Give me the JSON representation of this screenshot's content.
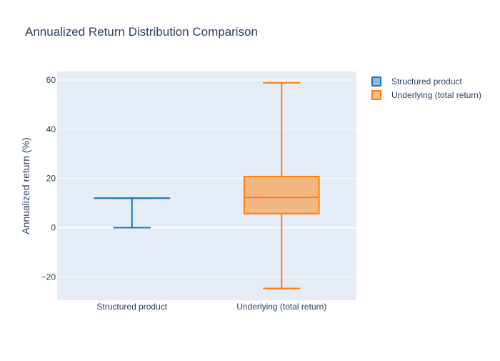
{
  "chart_data": {
    "type": "box",
    "title": "Annualized Return Distribution Comparison",
    "xlabel": "",
    "ylabel": "Annualized return (%)",
    "ylim": [
      -29.5,
      63.5
    ],
    "yticks": [
      -20,
      0,
      20,
      40,
      60
    ],
    "ytick_labels": [
      "−20",
      "0",
      "20",
      "40",
      "60"
    ],
    "categories": [
      "Structured product",
      "Underlying (total return)"
    ],
    "grid": true,
    "legend_position": "top-right",
    "series": [
      {
        "name": "Structured product",
        "color": "#1f77b4",
        "fill": "rgba(31,119,180,0.5)",
        "min": 0,
        "q1": 12,
        "median": 12,
        "q3": 12,
        "max": 12
      },
      {
        "name": "Underlying (total return)",
        "color": "#ff7f0e",
        "fill": "rgba(255,127,14,0.5)",
        "min": -24.7,
        "q1": 5.7,
        "median": 12.3,
        "q3": 20.8,
        "max": 58.9
      }
    ]
  }
}
